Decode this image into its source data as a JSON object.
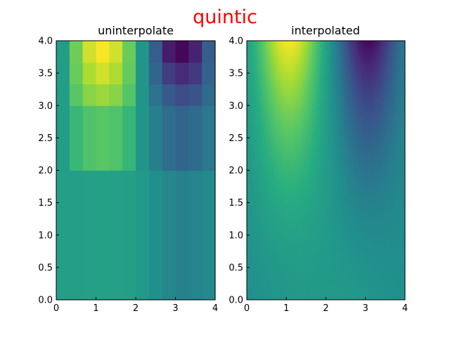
{
  "figure": {
    "suptitle": "quintic",
    "suptitle_color": "#ff0000",
    "colormap": "viridis"
  },
  "chart_data": [
    {
      "type": "heatmap",
      "title": "uninterpolate",
      "xlabel": "",
      "ylabel": "",
      "xlim": [
        0,
        4
      ],
      "ylim": [
        0,
        4
      ],
      "grid": false,
      "xticks": [
        "0",
        "1",
        "2",
        "3",
        "4"
      ],
      "yticks": [
        "0.0",
        "0.5",
        "1.0",
        "1.5",
        "2.0",
        "2.5",
        "3.0",
        "3.5",
        "4.0"
      ],
      "x_edges": [
        0,
        0.3333,
        0.6667,
        1.0,
        1.3333,
        1.6667,
        2.0,
        2.3333,
        2.6667,
        3.0,
        3.3333,
        3.6667,
        4.0
      ],
      "y_edges": [
        0,
        2.0,
        3.0,
        3.3333,
        3.6667,
        4.0
      ],
      "z": [
        [
          0.56,
          0.56,
          0.57,
          0.57,
          0.57,
          0.56,
          0.54,
          0.5,
          0.46,
          0.44,
          0.45,
          0.47
        ],
        [
          0.55,
          0.67,
          0.72,
          0.74,
          0.72,
          0.66,
          0.52,
          0.43,
          0.36,
          0.33,
          0.35,
          0.4
        ],
        [
          0.55,
          0.74,
          0.82,
          0.85,
          0.82,
          0.73,
          0.52,
          0.38,
          0.28,
          0.23,
          0.26,
          0.35
        ],
        [
          0.55,
          0.77,
          0.88,
          0.93,
          0.88,
          0.76,
          0.52,
          0.33,
          0.18,
          0.12,
          0.17,
          0.32
        ],
        [
          0.55,
          0.78,
          0.93,
          0.99,
          0.93,
          0.77,
          0.52,
          0.3,
          0.08,
          0.02,
          0.1,
          0.3
        ]
      ],
      "value_range": [
        0,
        1
      ]
    },
    {
      "type": "heatmap",
      "title": "interpolated",
      "xlabel": "",
      "ylabel": "",
      "xlim": [
        0,
        4
      ],
      "ylim": [
        0,
        4
      ],
      "grid": false,
      "xticks": [
        "0",
        "1",
        "2",
        "3",
        "4"
      ],
      "yticks": [
        "0.0",
        "0.5",
        "1.0",
        "1.5",
        "2.0",
        "2.5",
        "3.0",
        "3.5",
        "4.0"
      ],
      "grid_nx": 80,
      "grid_ny": 160,
      "function": "smooth field: peak ~0.98 near (1, 4), minimum ~0.02 near (3, 4), ~0.45–0.55 along y = 0",
      "value_range": [
        0,
        1
      ]
    }
  ]
}
